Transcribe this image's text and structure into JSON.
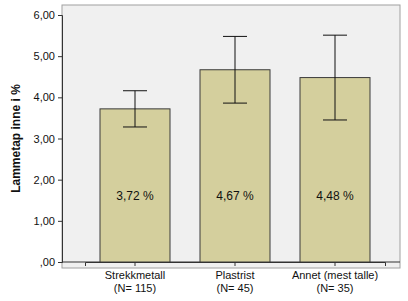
{
  "chart_data": {
    "type": "bar",
    "y_label": "Lammetap inne i %",
    "categories": [
      [
        "Strekkmetall",
        "(N= 115)"
      ],
      [
        "Plastrist",
        "(N= 45)"
      ],
      [
        "Annet (mest talle)",
        "(N= 35)"
      ]
    ],
    "values": [
      3.72,
      4.67,
      4.48
    ],
    "value_labels": [
      "3,72 %",
      "4,67 %",
      "4,48 %"
    ],
    "errors": [
      0.44,
      0.81,
      1.03
    ],
    "color": "#d4cf9d",
    "data_labels": true,
    "ylim": [
      0,
      6
    ],
    "yticks": [
      {
        "value": 0,
        "label": ",00"
      },
      {
        "value": 1,
        "label": "1,00"
      },
      {
        "value": 2,
        "label": "2,00"
      },
      {
        "value": 3,
        "label": "3,00"
      },
      {
        "value": 4,
        "label": "4,00"
      },
      {
        "value": 5,
        "label": "5,00"
      },
      {
        "value": 6,
        "label": "6,00"
      }
    ],
    "grid": false
  }
}
